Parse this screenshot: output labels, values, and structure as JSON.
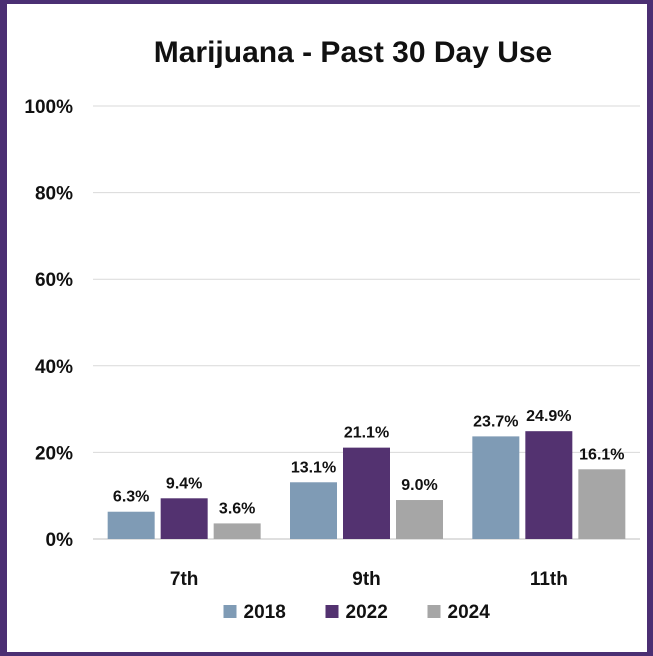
{
  "chart_data": {
    "type": "bar",
    "title": "Marijuana - Past 30 Day Use",
    "categories": [
      "7th",
      "9th",
      "11th"
    ],
    "series": [
      {
        "name": "2018",
        "values": [
          6.3,
          13.1,
          23.7
        ],
        "labels": [
          "6.3%",
          "13.1%",
          "23.7%"
        ],
        "color": "#7f9bb5"
      },
      {
        "name": "2022",
        "values": [
          9.4,
          21.1,
          24.9
        ],
        "labels": [
          "9.4%",
          "21.1%",
          "24.9%"
        ],
        "color": "#533270"
      },
      {
        "name": "2024",
        "values": [
          3.6,
          9.0,
          16.1
        ],
        "labels": [
          "3.6%",
          "9.0%",
          "16.1%"
        ],
        "color": "#a6a6a6"
      }
    ],
    "yticks": [
      "0%",
      "20%",
      "40%",
      "60%",
      "80%",
      "100%"
    ],
    "ylim": [
      0,
      100
    ],
    "grid": true,
    "legend_position": "bottom"
  },
  "colors": {
    "border": "#4b2f73",
    "background": "#ffffff"
  }
}
